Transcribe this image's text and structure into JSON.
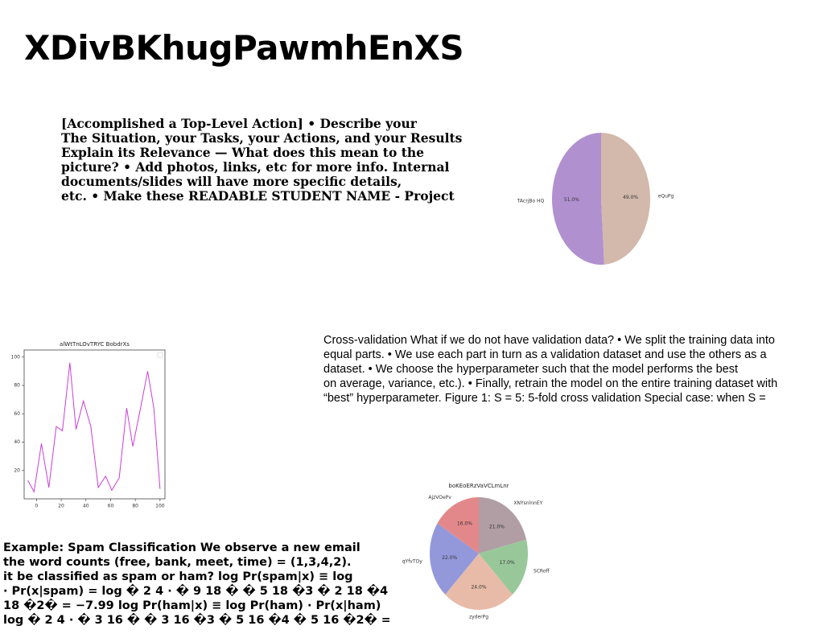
{
  "page": {
    "title": "XDivBKhugPawmhEnXS"
  },
  "text_blocks": {
    "star": "[Accomplished a Top-Level Action] • Describe your\nThe Situation, your Tasks, your Actions, and your Results\nExplain its Relevance — What does this mean to the\npicture? • Add photos, links, etc for more info. Internal\ndocuments/slides will have more specific details,\netc. • Make these READABLE STUDENT NAME - Project",
    "cross_validation": "Cross-validation What if we do not have validation data? • We split the training data into\nequal parts. • We use each part in turn as a validation dataset and use the others as a\ndataset. • We choose the hyperparameter such that the model performs the best\non average, variance, etc.). • Finally, retrain the model on the entire training dataset with\n“best” hyperparameter. Figure 1: S = 5: 5-fold cross validation Special case: when S =",
    "spam": "Example: Spam Classification We observe a new email\nthe word counts (free, bank, meet, time) = (1,3,4,2).\nit be classified as spam or ham? log Pr(spam|x) ≡ log\n· Pr(x|spam) = log � 2 4 · � 9 18 � � 5 18 �3 � 2 18 �4 �\n18 �2� = −7.99 log Pr(ham|x) ≡ log Pr(ham) · Pr(x|ham)\nlog � 2 4 · � 3 16 � � 3 16 �3 � 5 16 �4 � 5 16 �2� ="
  },
  "chart_data": [
    {
      "type": "pie",
      "title": "",
      "labels": [
        "TAcrjBo HQ",
        "eQuPg"
      ],
      "values": [
        51.0,
        49.0
      ],
      "value_labels": [
        "51.0%",
        "49.0%"
      ],
      "colors": [
        "#b190d0",
        "#d2b9ab"
      ],
      "start_angle_deg": 90,
      "direction": "counterclockwise",
      "grid": false
    },
    {
      "type": "line",
      "title": "alWtTnLOvTRYC BobdrXs",
      "xlabel": "",
      "ylabel": "",
      "x": [
        -7,
        -2,
        4,
        10,
        16,
        21,
        27,
        32,
        38,
        44,
        50,
        56,
        61,
        67,
        73,
        78,
        84,
        90,
        95,
        100
      ],
      "y": [
        13,
        5,
        39,
        8,
        51,
        48,
        96,
        49,
        69,
        51,
        8,
        16,
        6,
        15,
        64,
        37,
        63,
        90,
        64,
        7
      ],
      "xlim": [
        -10,
        104
      ],
      "ylim": [
        0,
        105
      ],
      "xticks": [
        0,
        20,
        40,
        60,
        80,
        100
      ],
      "yticks": [
        20,
        40,
        60,
        80,
        100
      ],
      "line_color": "#c93fd6",
      "legend_position": "top-right",
      "grid": false
    },
    {
      "type": "pie",
      "title": "boKEoERzVaVCLmLnr",
      "labels": [
        "XNYsnlnnEY",
        "SCRoff",
        "zyderPg",
        "qYfvTOy",
        "AjzVOePv"
      ],
      "values": [
        21.0,
        17.0,
        24.0,
        22.0,
        16.0
      ],
      "value_labels": [
        "21.0%",
        "17.0%",
        "24.0%",
        "22.0%",
        "16.0%"
      ],
      "colors": [
        "#b09ea4",
        "#98c89a",
        "#e8bba8",
        "#9398db",
        "#e3888a"
      ],
      "start_angle_deg": 90,
      "direction": "clockwise",
      "grid": false
    }
  ]
}
